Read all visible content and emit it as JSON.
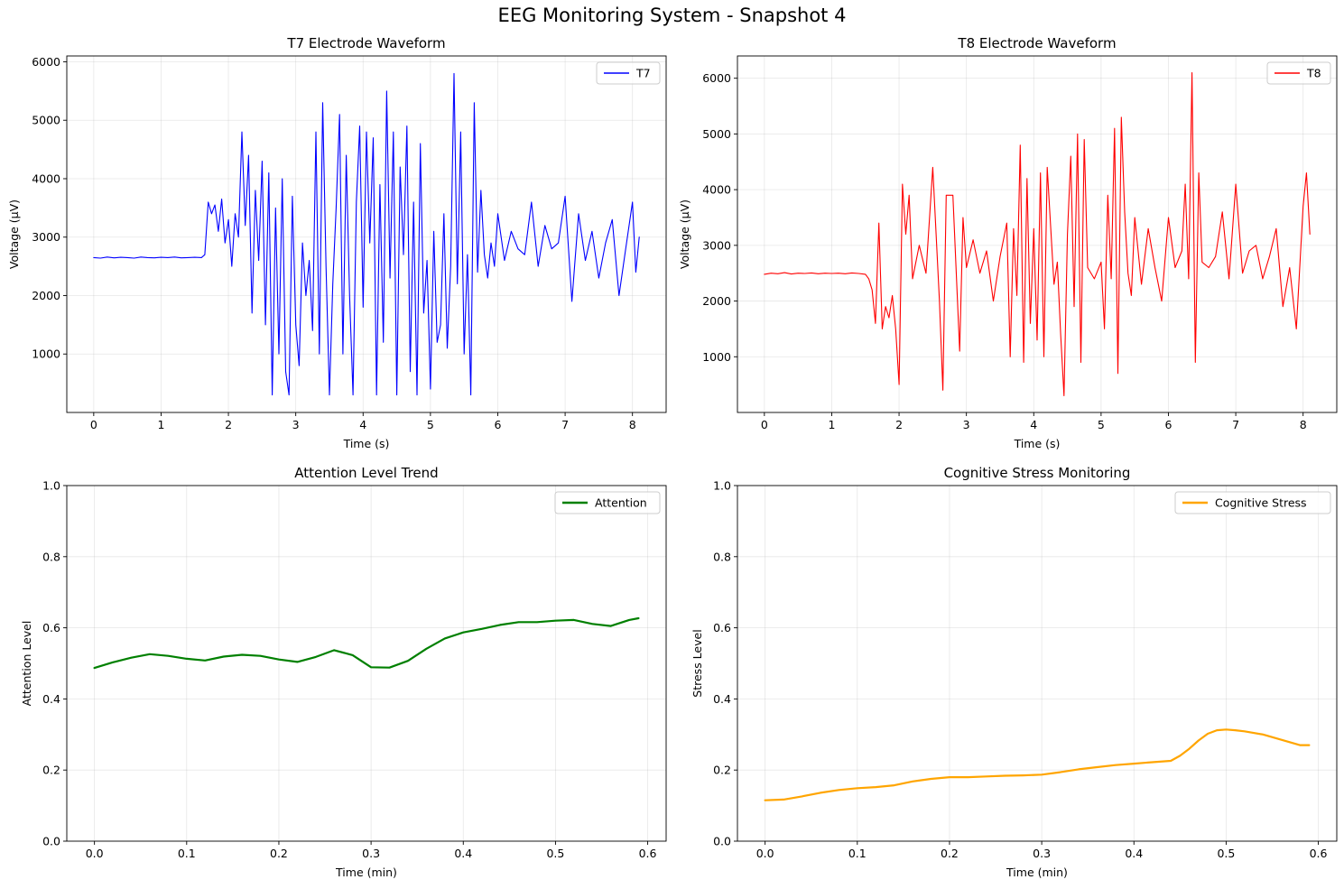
{
  "suptitle": "EEG Monitoring System - Snapshot 4",
  "chart_data": [
    {
      "type": "line",
      "title": "T7 Electrode Waveform",
      "xlabel": "Time (s)",
      "ylabel": "Voltage (µV)",
      "xlim": [
        -0.4,
        8.5
      ],
      "ylim": [
        0,
        6100
      ],
      "xticks": [
        0,
        1,
        2,
        3,
        4,
        5,
        6,
        7,
        8
      ],
      "yticks": [
        1000,
        2000,
        3000,
        4000,
        5000,
        6000
      ],
      "grid": true,
      "legend_position": "top-right",
      "series": [
        {
          "name": "T7",
          "color": "#0000ff",
          "kind": "eeg",
          "x": [
            0,
            0.1,
            0.2,
            0.3,
            0.4,
            0.5,
            0.6,
            0.7,
            0.8,
            0.9,
            1.0,
            1.1,
            1.2,
            1.3,
            1.4,
            1.5,
            1.6,
            1.65,
            1.7,
            1.75,
            1.8,
            1.85,
            1.9,
            1.95,
            2.0,
            2.05,
            2.1,
            2.15,
            2.2,
            2.25,
            2.3,
            2.35,
            2.4,
            2.45,
            2.5,
            2.55,
            2.6,
            2.65,
            2.7,
            2.75,
            2.8,
            2.85,
            2.9,
            2.95,
            3.0,
            3.05,
            3.1,
            3.15,
            3.2,
            3.25,
            3.3,
            3.35,
            3.4,
            3.45,
            3.5,
            3.55,
            3.6,
            3.65,
            3.7,
            3.75,
            3.8,
            3.85,
            3.9,
            3.95,
            4.0,
            4.05,
            4.1,
            4.15,
            4.2,
            4.25,
            4.3,
            4.35,
            4.4,
            4.45,
            4.5,
            4.55,
            4.6,
            4.65,
            4.7,
            4.75,
            4.8,
            4.85,
            4.9,
            4.95,
            5.0,
            5.05,
            5.1,
            5.15,
            5.2,
            5.25,
            5.3,
            5.35,
            5.4,
            5.45,
            5.5,
            5.55,
            5.6,
            5.65,
            5.7,
            5.75,
            5.8,
            5.85,
            5.9,
            5.95,
            6.0,
            6.1,
            6.2,
            6.3,
            6.4,
            6.5,
            6.6,
            6.7,
            6.8,
            6.9,
            7.0,
            7.1,
            7.2,
            7.3,
            7.4,
            7.5,
            7.6,
            7.7,
            7.8,
            7.9,
            8.0,
            8.05,
            8.1
          ],
          "y": [
            2650,
            2640,
            2660,
            2645,
            2655,
            2650,
            2640,
            2660,
            2650,
            2645,
            2655,
            2650,
            2660,
            2645,
            2650,
            2655,
            2650,
            2700,
            3600,
            3400,
            3550,
            3100,
            3650,
            2900,
            3300,
            2500,
            3400,
            3000,
            4800,
            3200,
            4400,
            1700,
            3800,
            2600,
            4300,
            1500,
            4100,
            300,
            3500,
            1000,
            4000,
            700,
            300,
            3700,
            1500,
            800,
            2900,
            2000,
            2600,
            1400,
            4800,
            1000,
            5300,
            2500,
            300,
            2200,
            3500,
            5100,
            1000,
            4400,
            2000,
            300,
            3600,
            4900,
            1800,
            4800,
            2900,
            4700,
            300,
            3900,
            1200,
            5500,
            2300,
            4800,
            300,
            4200,
            2700,
            4900,
            700,
            3600,
            300,
            4600,
            1700,
            2600,
            400,
            3100,
            1200,
            1500,
            3400,
            1100,
            2500,
            5800,
            2200,
            4800,
            1000,
            2700,
            300,
            5300,
            2400,
            3800,
            2700,
            2300,
            2900,
            2500,
            3400,
            2600,
            3100,
            2800,
            2700,
            3600,
            2500,
            3200,
            2800,
            2900,
            3700,
            1900,
            3400,
            2600,
            3100,
            2300,
            2900,
            3300,
            2000,
            2800,
            3600,
            2400,
            3000
          ]
        }
      ]
    },
    {
      "type": "line",
      "title": "T8 Electrode Waveform",
      "xlabel": "Time (s)",
      "ylabel": "Voltage (µV)",
      "xlim": [
        -0.4,
        8.5
      ],
      "ylim": [
        0,
        6400
      ],
      "xticks": [
        0,
        1,
        2,
        3,
        4,
        5,
        6,
        7,
        8
      ],
      "yticks": [
        1000,
        2000,
        3000,
        4000,
        5000,
        6000
      ],
      "grid": true,
      "legend_position": "top-right",
      "series": [
        {
          "name": "T8",
          "color": "#ff0000",
          "kind": "eeg",
          "x": [
            0,
            0.1,
            0.2,
            0.3,
            0.4,
            0.5,
            0.6,
            0.7,
            0.8,
            0.9,
            1.0,
            1.1,
            1.2,
            1.3,
            1.4,
            1.5,
            1.55,
            1.6,
            1.65,
            1.7,
            1.75,
            1.8,
            1.85,
            1.9,
            1.95,
            2.0,
            2.05,
            2.1,
            2.15,
            2.2,
            2.3,
            2.4,
            2.5,
            2.6,
            2.65,
            2.7,
            2.8,
            2.9,
            2.95,
            3.0,
            3.1,
            3.2,
            3.3,
            3.4,
            3.5,
            3.6,
            3.65,
            3.7,
            3.75,
            3.8,
            3.85,
            3.9,
            3.95,
            4.0,
            4.05,
            4.1,
            4.15,
            4.2,
            4.3,
            4.35,
            4.4,
            4.45,
            4.5,
            4.55,
            4.6,
            4.65,
            4.7,
            4.75,
            4.8,
            4.9,
            5.0,
            5.05,
            5.1,
            5.15,
            5.2,
            5.25,
            5.3,
            5.35,
            5.4,
            5.45,
            5.5,
            5.6,
            5.7,
            5.8,
            5.9,
            6.0,
            6.1,
            6.2,
            6.25,
            6.3,
            6.35,
            6.4,
            6.45,
            6.5,
            6.6,
            6.7,
            6.8,
            6.9,
            7.0,
            7.1,
            7.2,
            7.3,
            7.4,
            7.5,
            7.6,
            7.7,
            7.8,
            7.9,
            8.0,
            8.05,
            8.1
          ],
          "y": [
            2480,
            2500,
            2490,
            2510,
            2485,
            2500,
            2495,
            2505,
            2490,
            2500,
            2495,
            2500,
            2490,
            2505,
            2495,
            2480,
            2400,
            2200,
            1600,
            3400,
            1500,
            1900,
            1700,
            2100,
            1500,
            500,
            4100,
            3200,
            3900,
            2400,
            3000,
            2500,
            4400,
            2000,
            400,
            3900,
            3900,
            1100,
            3500,
            2600,
            3100,
            2500,
            2900,
            2000,
            2800,
            3400,
            1000,
            3300,
            2100,
            4800,
            900,
            4200,
            1600,
            3300,
            1300,
            4300,
            1000,
            4400,
            2300,
            2700,
            1400,
            300,
            3200,
            4600,
            1900,
            5000,
            900,
            4900,
            2600,
            2400,
            2700,
            1500,
            3900,
            2400,
            5100,
            700,
            5300,
            3600,
            2500,
            2100,
            3500,
            2300,
            3300,
            2600,
            2000,
            3500,
            2600,
            2900,
            4100,
            2400,
            6100,
            900,
            4300,
            2700,
            2600,
            2800,
            3600,
            2400,
            4100,
            2500,
            2900,
            3000,
            2400,
            2800,
            3300,
            1900,
            2600,
            1500,
            3700,
            4300,
            3200
          ]
        }
      ]
    },
    {
      "type": "line",
      "title": "Attention Level Trend",
      "xlabel": "Time (min)",
      "ylabel": "Attention Level",
      "xlim": [
        -0.03,
        0.62
      ],
      "ylim": [
        0,
        1
      ],
      "xticks": [
        0.0,
        0.1,
        0.2,
        0.3,
        0.4,
        0.5,
        0.6
      ],
      "yticks": [
        0.0,
        0.2,
        0.4,
        0.6,
        0.8,
        1.0
      ],
      "grid": true,
      "legend_position": "top-right",
      "series": [
        {
          "name": "Attention",
          "color": "#008000",
          "kind": "smooth",
          "x": [
            0.0,
            0.02,
            0.04,
            0.06,
            0.08,
            0.1,
            0.12,
            0.14,
            0.16,
            0.18,
            0.2,
            0.22,
            0.24,
            0.26,
            0.28,
            0.3,
            0.32,
            0.34,
            0.36,
            0.38,
            0.4,
            0.42,
            0.44,
            0.46,
            0.48,
            0.5,
            0.52,
            0.54,
            0.56,
            0.58,
            0.59
          ],
          "y": [
            0.487,
            0.503,
            0.516,
            0.526,
            0.521,
            0.513,
            0.508,
            0.519,
            0.524,
            0.521,
            0.511,
            0.504,
            0.518,
            0.537,
            0.523,
            0.489,
            0.488,
            0.507,
            0.541,
            0.57,
            0.587,
            0.597,
            0.608,
            0.616,
            0.616,
            0.62,
            0.622,
            0.611,
            0.605,
            0.622,
            0.627
          ]
        }
      ]
    },
    {
      "type": "line",
      "title": "Cognitive Stress Monitoring",
      "xlabel": "Time (min)",
      "ylabel": "Stress Level",
      "xlim": [
        -0.03,
        0.62
      ],
      "ylim": [
        0,
        1
      ],
      "xticks": [
        0.0,
        0.1,
        0.2,
        0.3,
        0.4,
        0.5,
        0.6
      ],
      "yticks": [
        0.0,
        0.2,
        0.4,
        0.6,
        0.8,
        1.0
      ],
      "grid": true,
      "legend_position": "top-right",
      "series": [
        {
          "name": "Cognitive Stress",
          "color": "#ffa500",
          "kind": "smooth",
          "x": [
            0.0,
            0.02,
            0.04,
            0.06,
            0.08,
            0.1,
            0.12,
            0.14,
            0.16,
            0.18,
            0.2,
            0.22,
            0.24,
            0.26,
            0.28,
            0.3,
            0.32,
            0.34,
            0.36,
            0.38,
            0.4,
            0.42,
            0.44,
            0.45,
            0.46,
            0.47,
            0.48,
            0.49,
            0.5,
            0.51,
            0.52,
            0.54,
            0.56,
            0.58,
            0.59
          ],
          "y": [
            0.115,
            0.117,
            0.126,
            0.136,
            0.144,
            0.149,
            0.152,
            0.157,
            0.168,
            0.175,
            0.18,
            0.18,
            0.182,
            0.184,
            0.185,
            0.187,
            0.194,
            0.202,
            0.208,
            0.214,
            0.218,
            0.222,
            0.226,
            0.24,
            0.26,
            0.283,
            0.302,
            0.312,
            0.314,
            0.312,
            0.309,
            0.3,
            0.285,
            0.27,
            0.27
          ]
        }
      ]
    }
  ]
}
